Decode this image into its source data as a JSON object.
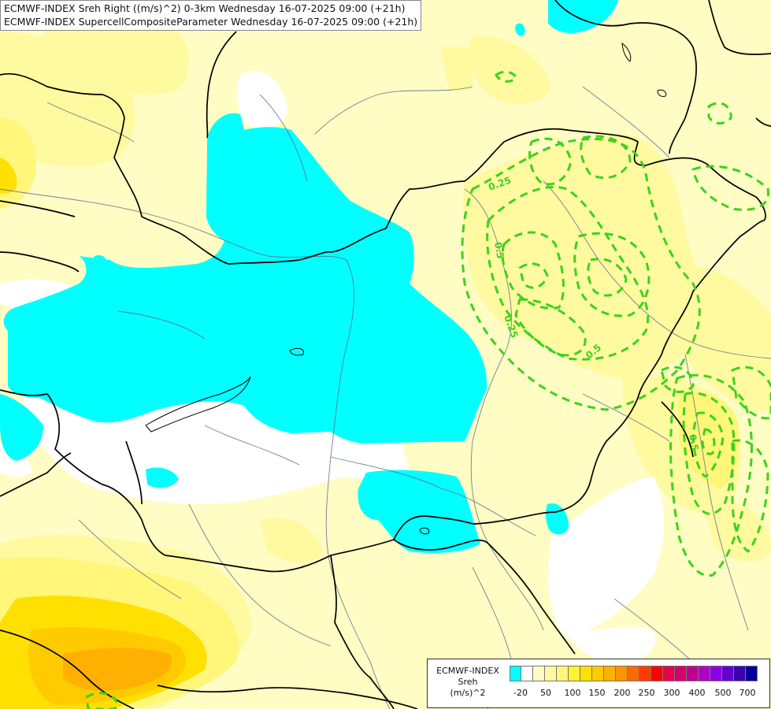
{
  "title": {
    "line1": "ECMWF-INDEX Sreh Right ((m/s)^2) 0-3km Wednesday 16-07-2025 09:00 (+21h)",
    "line2": "ECMWF-INDEX SupercellCompositeParameter Wednesday 16-07-2025 09:00 (+21h)"
  },
  "legend": {
    "name_line1": "ECMWF-INDEX",
    "name_line2": "Sreh",
    "name_line3": "(m/s)^2",
    "swatch_colors": [
      "#00ffff",
      "#ffffff",
      "#fffcc4",
      "#fff9a0",
      "#fff67a",
      "#fff22f",
      "#ffe000",
      "#ffcb00",
      "#ffb000",
      "#ff9400",
      "#ff6a00",
      "#ff3c00",
      "#ff0000",
      "#e8004a",
      "#d4006e",
      "#c0008c",
      "#b000c8",
      "#8c00e6",
      "#6400d0",
      "#3c00b4",
      "#000096"
    ],
    "ticks": [
      "-20",
      "50",
      "100",
      "150",
      "200",
      "250",
      "300",
      "400",
      "500",
      "700"
    ]
  },
  "contour_labels": {
    "a": "0.25",
    "b": "0.5",
    "c": "0.25",
    "d": "0.5",
    "e": "0.5"
  },
  "colors": {
    "background": "#fffcc4",
    "cyan": "#00ffff",
    "scp_contour": "#3cd21e",
    "border": "#000000",
    "river": "#5a6b8c"
  }
}
